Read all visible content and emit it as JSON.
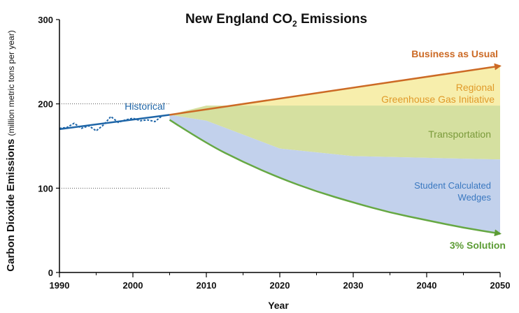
{
  "chart_data": {
    "type": "area",
    "title": "New England CO",
    "title_subscript": "2",
    "title_suffix": " Emissions",
    "xlabel": "Year",
    "ylabel": "Carbon Dioxide Emissions",
    "ylabel_unit": "(million metric tons per year)",
    "xlim": [
      1990,
      2050
    ],
    "ylim": [
      0,
      300
    ],
    "xticks": [
      1990,
      2000,
      2010,
      2020,
      2030,
      2040,
      2050
    ],
    "yticks": [
      0,
      100,
      200,
      300
    ],
    "reference_lines": [
      100,
      200
    ],
    "series": [
      {
        "name": "Historical",
        "kind": "line",
        "color": "#1f66a8",
        "x": [
          1990,
          2005
        ],
        "y": [
          170,
          187
        ]
      },
      {
        "name": "Historical",
        "kind": "jagged-line",
        "color": "#1f66a8",
        "x": [
          1990,
          1991,
          1992,
          1993,
          1994,
          1995,
          1996,
          1997,
          1998,
          1999,
          2000,
          2001,
          2002,
          2003,
          2004
        ],
        "y": [
          171,
          172,
          177,
          171,
          174,
          168,
          175,
          185,
          178,
          181,
          183,
          180,
          181,
          179,
          186
        ]
      },
      {
        "name": "Business as Usual",
        "kind": "arrow-line",
        "color": "#cc6a25",
        "x": [
          2005,
          2050
        ],
        "y": [
          187,
          245
        ]
      },
      {
        "name": "Regional Greenhouse Gas Initiative",
        "kind": "band",
        "color": "#f7eeac",
        "x": [
          2005,
          2050
        ],
        "upper": [
          187,
          245
        ],
        "lower": [
          187,
          198
        ]
      },
      {
        "name": "Transportation",
        "kind": "band",
        "color": "#d5e0a0",
        "x": [
          2005,
          2010,
          2020,
          2030,
          2040,
          2050
        ],
        "upper": [
          187,
          198,
          198,
          198,
          198,
          198
        ],
        "lower": [
          187,
          180,
          147,
          138,
          136,
          134
        ]
      },
      {
        "name": "Student Calculated Wedges",
        "kind": "band",
        "color": "#c2d1ec",
        "x": [
          2005,
          2010,
          2020,
          2030,
          2040,
          2050
        ],
        "upper": [
          187,
          180,
          147,
          138,
          136,
          134
        ],
        "lower": [
          181,
          153,
          112,
          83,
          62,
          46
        ]
      },
      {
        "name": "3% Solution",
        "kind": "arrow-line",
        "color": "#66a843",
        "x": [
          2005,
          2010,
          2015,
          2020,
          2025,
          2030,
          2035,
          2040,
          2045,
          2050
        ],
        "y": [
          181,
          153,
          131,
          112,
          96,
          83,
          71,
          62,
          53,
          46
        ]
      }
    ],
    "labels": {
      "historical": "Historical",
      "bau": "Business as Usual",
      "rggi_line1": "Regional",
      "rggi_line2": "Greenhouse Gas Initiative",
      "transportation": "Transportation",
      "wedges_line1": "Student Calculated",
      "wedges_line2": "Wedges",
      "solution": "3% Solution"
    },
    "colors": {
      "historical": "#1f66a8",
      "bau": "#cc6a25",
      "rggi_text": "#e09a2a",
      "transportation_text": "#7a9a3a",
      "wedges_text": "#3a78c0",
      "solution": "#5c9c35",
      "axis": "#000000",
      "reference": "#555555"
    }
  }
}
